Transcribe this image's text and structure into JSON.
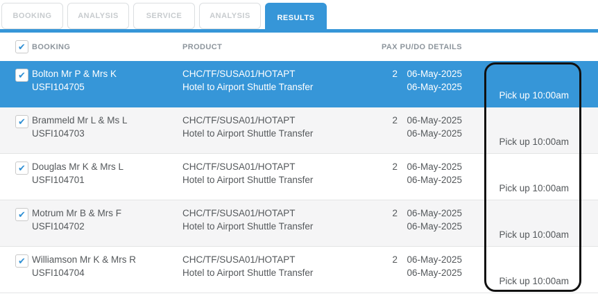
{
  "tabs": [
    {
      "label": "BOOKING",
      "active": false
    },
    {
      "label": "ANALYSIS",
      "active": false
    },
    {
      "label": "SERVICE",
      "active": false
    },
    {
      "label": "ANALYSIS",
      "active": false
    },
    {
      "label": "RESULTS",
      "active": true
    }
  ],
  "icons": {
    "check": "✔"
  },
  "colors": {
    "accent": "#3696d8",
    "selected_row": "#3696d8",
    "stripe": "#f5f5f6",
    "inactive_tab_text": "#c7cbce",
    "header_text": "#8d959c",
    "body_text": "#54585b",
    "annotation": "#111111"
  },
  "table": {
    "headers": {
      "booking": "BOOKING",
      "product": "PRODUCT",
      "pax": "PAX",
      "pudo": "PU/DO DETAILS"
    },
    "rows": [
      {
        "name": "Bolton Mr P & Mrs K",
        "code": "USFI104705",
        "product_code": "CHC/TF/SUSA01/HOTAPT",
        "product_name": "Hotel to Airport Shuttle Transfer",
        "pax": "2",
        "pickup_date": "06-May-2025",
        "dropoff_date": "06-May-2025",
        "pickup_time": "Pick up 10:00am",
        "checked": true,
        "selected": true
      },
      {
        "name": "Brammeld Mr L & Ms L",
        "code": "USFI104703",
        "product_code": "CHC/TF/SUSA01/HOTAPT",
        "product_name": "Hotel to Airport Shuttle Transfer",
        "pax": "2",
        "pickup_date": "06-May-2025",
        "dropoff_date": "06-May-2025",
        "pickup_time": "Pick up 10:00am",
        "checked": true,
        "selected": false
      },
      {
        "name": "Douglas Mr K & Mrs L",
        "code": "USFI104701",
        "product_code": "CHC/TF/SUSA01/HOTAPT",
        "product_name": "Hotel to Airport Shuttle Transfer",
        "pax": "2",
        "pickup_date": "06-May-2025",
        "dropoff_date": "06-May-2025",
        "pickup_time": "Pick up 10:00am",
        "checked": true,
        "selected": false
      },
      {
        "name": "Motrum Mr B & Mrs F",
        "code": "USFI104702",
        "product_code": "CHC/TF/SUSA01/HOTAPT",
        "product_name": "Hotel to Airport Shuttle Transfer",
        "pax": "2",
        "pickup_date": "06-May-2025",
        "dropoff_date": "06-May-2025",
        "pickup_time": "Pick up 10:00am",
        "checked": true,
        "selected": false
      },
      {
        "name": "Williamson Mr K & Mrs R",
        "code": "USFI104704",
        "product_code": "CHC/TF/SUSA01/HOTAPT",
        "product_name": "Hotel to Airport Shuttle Transfer",
        "pax": "2",
        "pickup_date": "06-May-2025",
        "dropoff_date": "06-May-2025",
        "pickup_time": "Pick up 10:00am",
        "checked": true,
        "selected": false
      }
    ]
  }
}
